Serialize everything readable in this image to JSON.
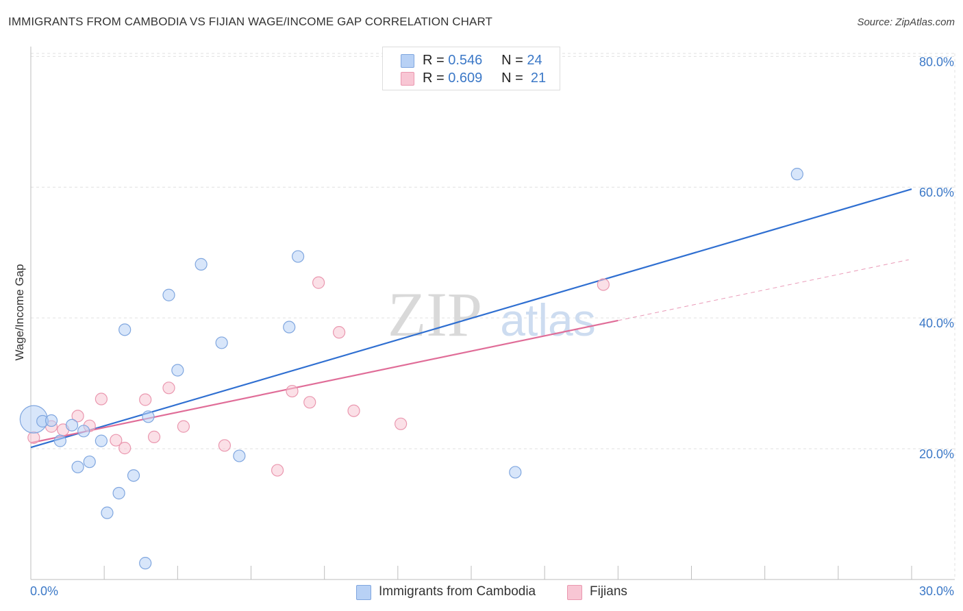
{
  "header": {
    "title": "IMMIGRANTS FROM CAMBODIA VS FIJIAN WAGE/INCOME GAP CORRELATION CHART",
    "source": "Source: ZipAtlas.com"
  },
  "colors": {
    "blue_fill": "#b8d1f5",
    "blue_stroke": "#7fa6df",
    "blue_line": "#2f6fd1",
    "pink_fill": "#f8c6d4",
    "pink_stroke": "#ea97af",
    "pink_line": "#e06d98",
    "tick_label": "#3b78c7",
    "grid": "#e0e0e0"
  },
  "watermark": {
    "zip": "ZIP",
    "atlas": "atlas"
  },
  "legend": {
    "r_label": "R =",
    "n_label": "N =",
    "series1": {
      "r": "0.546",
      "n": "24"
    },
    "series2": {
      "r": "0.609",
      "n": "21"
    }
  },
  "chart_data": {
    "type": "scatter",
    "title": "IMMIGRANTS FROM CAMBODIA VS FIJIAN WAGE/INCOME GAP CORRELATION CHART",
    "xlabel": "",
    "ylabel": "Wage/Income Gap",
    "xlim": [
      0,
      30
    ],
    "ylim": [
      0,
      81.5
    ],
    "x_tick_labels": [
      "0.0%",
      "30.0%"
    ],
    "y_ticks": [
      20,
      40,
      60,
      80
    ],
    "y_tick_labels": [
      "20.0%",
      "40.0%",
      "60.0%",
      "80.0%"
    ],
    "grid": true,
    "legend_position": "bottom-center",
    "series": [
      {
        "name": "Immigrants from Cambodia",
        "color": "blue",
        "r": 0.546,
        "n": 24,
        "points": [
          {
            "x": 0.1,
            "y": 24.5,
            "big": true
          },
          {
            "x": 0.4,
            "y": 24.2
          },
          {
            "x": 0.7,
            "y": 24.3
          },
          {
            "x": 1.0,
            "y": 21.2
          },
          {
            "x": 1.4,
            "y": 23.6
          },
          {
            "x": 1.6,
            "y": 17.2
          },
          {
            "x": 1.8,
            "y": 22.7
          },
          {
            "x": 2.0,
            "y": 18.0
          },
          {
            "x": 2.4,
            "y": 21.2
          },
          {
            "x": 2.6,
            "y": 10.2
          },
          {
            "x": 3.0,
            "y": 13.2
          },
          {
            "x": 3.2,
            "y": 38.2
          },
          {
            "x": 3.5,
            "y": 15.9
          },
          {
            "x": 3.9,
            "y": 2.5
          },
          {
            "x": 4.0,
            "y": 24.9
          },
          {
            "x": 4.7,
            "y": 43.5
          },
          {
            "x": 5.0,
            "y": 32.0
          },
          {
            "x": 5.8,
            "y": 48.2
          },
          {
            "x": 6.5,
            "y": 36.2
          },
          {
            "x": 7.1,
            "y": 18.9
          },
          {
            "x": 8.8,
            "y": 38.6
          },
          {
            "x": 9.1,
            "y": 49.4
          },
          {
            "x": 16.5,
            "y": 16.4
          },
          {
            "x": 26.1,
            "y": 62.0
          }
        ],
        "trend": {
          "x0": 0,
          "y0": 20.2,
          "x1": 30,
          "y1": 59.7
        }
      },
      {
        "name": "Fijians",
        "color": "pink",
        "r": 0.609,
        "n": 21,
        "points": [
          {
            "x": 0.1,
            "y": 21.7
          },
          {
            "x": 0.7,
            "y": 23.4
          },
          {
            "x": 1.1,
            "y": 22.9
          },
          {
            "x": 1.6,
            "y": 25.0
          },
          {
            "x": 2.0,
            "y": 23.5
          },
          {
            "x": 2.4,
            "y": 27.6
          },
          {
            "x": 2.9,
            "y": 21.3
          },
          {
            "x": 3.2,
            "y": 20.1
          },
          {
            "x": 3.9,
            "y": 27.5
          },
          {
            "x": 4.2,
            "y": 21.8
          },
          {
            "x": 4.7,
            "y": 29.3
          },
          {
            "x": 5.2,
            "y": 23.4
          },
          {
            "x": 6.6,
            "y": 20.5
          },
          {
            "x": 8.4,
            "y": 16.7
          },
          {
            "x": 8.9,
            "y": 28.8
          },
          {
            "x": 9.5,
            "y": 27.1
          },
          {
            "x": 9.8,
            "y": 45.4
          },
          {
            "x": 10.5,
            "y": 37.8
          },
          {
            "x": 11.0,
            "y": 25.8
          },
          {
            "x": 12.6,
            "y": 23.8
          },
          {
            "x": 19.5,
            "y": 45.1
          }
        ],
        "trend": {
          "x0": 0,
          "y0": 20.9,
          "x1": 20.0,
          "y1": 39.6
        },
        "trend_dashed": {
          "x0": 20.0,
          "y0": 39.6,
          "x1": 29.9,
          "y1": 48.9
        }
      }
    ]
  }
}
